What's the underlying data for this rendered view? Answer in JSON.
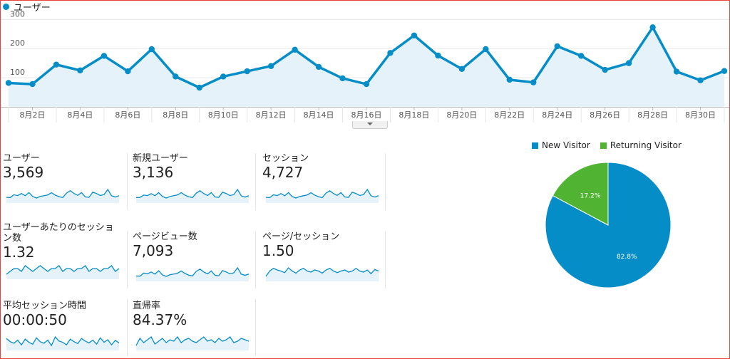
{
  "legend_label": "ユーザー",
  "chart_data": [
    {
      "type": "area",
      "series": [
        {
          "name": "ユーザー",
          "values": [
            82,
            78,
            145,
            125,
            175,
            122,
            198,
            104,
            66,
            104,
            122,
            140,
            196,
            137,
            98,
            78,
            185,
            245,
            176,
            130,
            198,
            93,
            84,
            208,
            175,
            127,
            150,
            273,
            121,
            91,
            123
          ]
        }
      ],
      "x": [
        "8月1日",
        "8月2日",
        "8月3日",
        "8月4日",
        "8月5日",
        "8月6日",
        "8月7日",
        "8月8日",
        "8月9日",
        "8月10日",
        "8月11日",
        "8月12日",
        "8月13日",
        "8月14日",
        "8月15日",
        "8月16日",
        "8月17日",
        "8月18日",
        "8月19日",
        "8月20日",
        "8月21日",
        "8月22日",
        "8月23日",
        "8月24日",
        "8月25日",
        "8月26日",
        "8月27日",
        "8月28日",
        "8月29日",
        "8月30日",
        "8月31日"
      ],
      "x_tick_labels": [
        "8月2日",
        "8月4日",
        "8月6日",
        "8月8日",
        "8月10日",
        "8月12日",
        "8月14日",
        "8月16日",
        "8月18日",
        "8月20日",
        "8月22日",
        "8月24日",
        "8月26日",
        "8月28日",
        "8月30日"
      ],
      "y_tick_labels": [
        "100",
        "200",
        "300"
      ],
      "ylim": [
        0,
        330
      ],
      "grid": true,
      "color": "#058dc7"
    },
    {
      "type": "pie",
      "labels": [
        "New Visitor",
        "Returning Visitor"
      ],
      "values": [
        82.8,
        17.2
      ],
      "value_labels": [
        "82.8%",
        "17.2%"
      ],
      "colors": [
        "#058dc7",
        "#50b432"
      ],
      "legend": "top"
    }
  ],
  "metrics": [
    {
      "label": "ユーザー",
      "value": "3,569",
      "spark": [
        82,
        78,
        145,
        125,
        175,
        122,
        198,
        104,
        66,
        104,
        122,
        140,
        196,
        137,
        98,
        78,
        185,
        245,
        176,
        130,
        198,
        93,
        84,
        208,
        175,
        127,
        150,
        273,
        121,
        91,
        123
      ]
    },
    {
      "label": "新規ユーザー",
      "value": "3,136",
      "spark": [
        70,
        72,
        120,
        110,
        150,
        108,
        170,
        92,
        60,
        92,
        108,
        124,
        170,
        120,
        86,
        70,
        160,
        210,
        152,
        112,
        172,
        82,
        74,
        180,
        152,
        110,
        130,
        236,
        105,
        80,
        108
      ]
    },
    {
      "label": "セッション",
      "value": "4,727",
      "spark": [
        110,
        100,
        190,
        165,
        230,
        160,
        260,
        135,
        88,
        135,
        160,
        185,
        258,
        180,
        130,
        102,
        245,
        320,
        230,
        170,
        260,
        122,
        110,
        275,
        230,
        168,
        198,
        360,
        160,
        120,
        162
      ]
    },
    {
      "label": "ユーザーあたりのセッション数",
      "value": "1.32",
      "spark": [
        1.3,
        1.31,
        1.32,
        1.32,
        1.31,
        1.33,
        1.32,
        1.31,
        1.32,
        1.33,
        1.32,
        1.31,
        1.32,
        1.32,
        1.33,
        1.31,
        1.32,
        1.32,
        1.31,
        1.32,
        1.32,
        1.33,
        1.31,
        1.32,
        1.32,
        1.31,
        1.32,
        1.32,
        1.33,
        1.31,
        1.32
      ]
    },
    {
      "label": "ページビュー数",
      "value": "7,093",
      "spark": [
        150,
        140,
        290,
        250,
        340,
        240,
        400,
        200,
        130,
        210,
        240,
        280,
        390,
        270,
        190,
        150,
        370,
        480,
        340,
        250,
        390,
        180,
        160,
        410,
        340,
        250,
        300,
        540,
        240,
        180,
        240
      ]
    },
    {
      "label": "ページ/セッション",
      "value": "1.50",
      "spark": [
        1.4,
        1.5,
        1.55,
        1.52,
        1.5,
        1.47,
        1.56,
        1.5,
        1.46,
        1.52,
        1.55,
        1.5,
        1.48,
        1.52,
        1.5,
        1.46,
        1.52,
        1.55,
        1.5,
        1.47,
        1.5,
        1.52,
        1.48,
        1.5,
        1.55,
        1.5,
        1.48,
        1.52,
        1.45,
        1.53,
        1.5
      ]
    },
    {
      "label": "平均セッション時間",
      "value": "00:00:50",
      "spark": [
        60,
        50,
        45,
        55,
        40,
        58,
        48,
        42,
        62,
        50,
        45,
        55,
        38,
        65,
        52,
        48,
        40,
        58,
        50,
        44,
        60,
        52,
        46,
        55,
        42,
        62,
        48,
        56,
        40,
        54,
        46
      ]
    },
    {
      "label": "直帰率",
      "value": "84.37%",
      "spark": [
        84,
        84.5,
        84.2,
        84.4,
        84.6,
        84.1,
        84.3,
        84.5,
        84.2,
        84.4,
        84.3,
        84.6,
        84.2,
        84.4,
        84.5,
        84.3,
        84.2,
        84.4,
        84.6,
        84.3,
        84.4,
        84.2,
        84.5,
        84.3,
        84.4,
        84.6,
        84.2,
        84.3,
        84.5,
        84.4,
        84.3
      ]
    }
  ]
}
